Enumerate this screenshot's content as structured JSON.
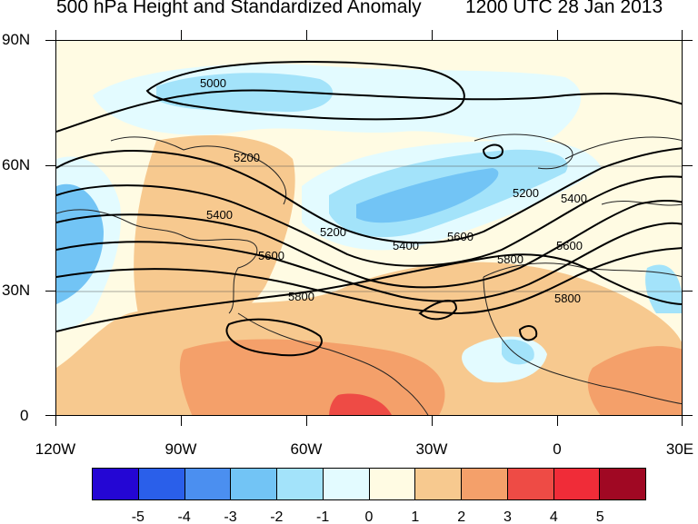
{
  "title": "500 hPa Height and Standardized Anomaly",
  "valid_time": "1200 UTC 28 Jan 2013",
  "lat_labels": [
    "90N",
    "60N",
    "30N",
    "0"
  ],
  "lon_labels": [
    "120W",
    "90W",
    "60W",
    "30W",
    "0",
    "30E"
  ],
  "contour_labels": [
    "5000",
    "5200",
    "5200",
    "5400",
    "5400",
    "5600",
    "5600",
    "5800",
    "5800",
    "5800",
    "5200",
    "5400",
    "5600"
  ],
  "colorbar": {
    "colors": [
      "#2406d4",
      "#2a5fea",
      "#4b8ff0",
      "#72c4f5",
      "#a3e3fa",
      "#e3fbff",
      "#fffbe3",
      "#f7c98f",
      "#f4a06a",
      "#ee4b45",
      "#f02c38",
      "#a00823"
    ],
    "labels": [
      "-5",
      "-4",
      "-3",
      "-2",
      "-1",
      "0",
      "1",
      "2",
      "3",
      "4",
      "5"
    ]
  },
  "colors": {
    "neutral": "#fffbe3",
    "land_pos1": "#f7c98f",
    "pos2": "#f4a06a",
    "pos3": "#ee4b45",
    "neg1": "#e3fbff",
    "neg2": "#a3e3fa",
    "neg3": "#72c4f5"
  }
}
